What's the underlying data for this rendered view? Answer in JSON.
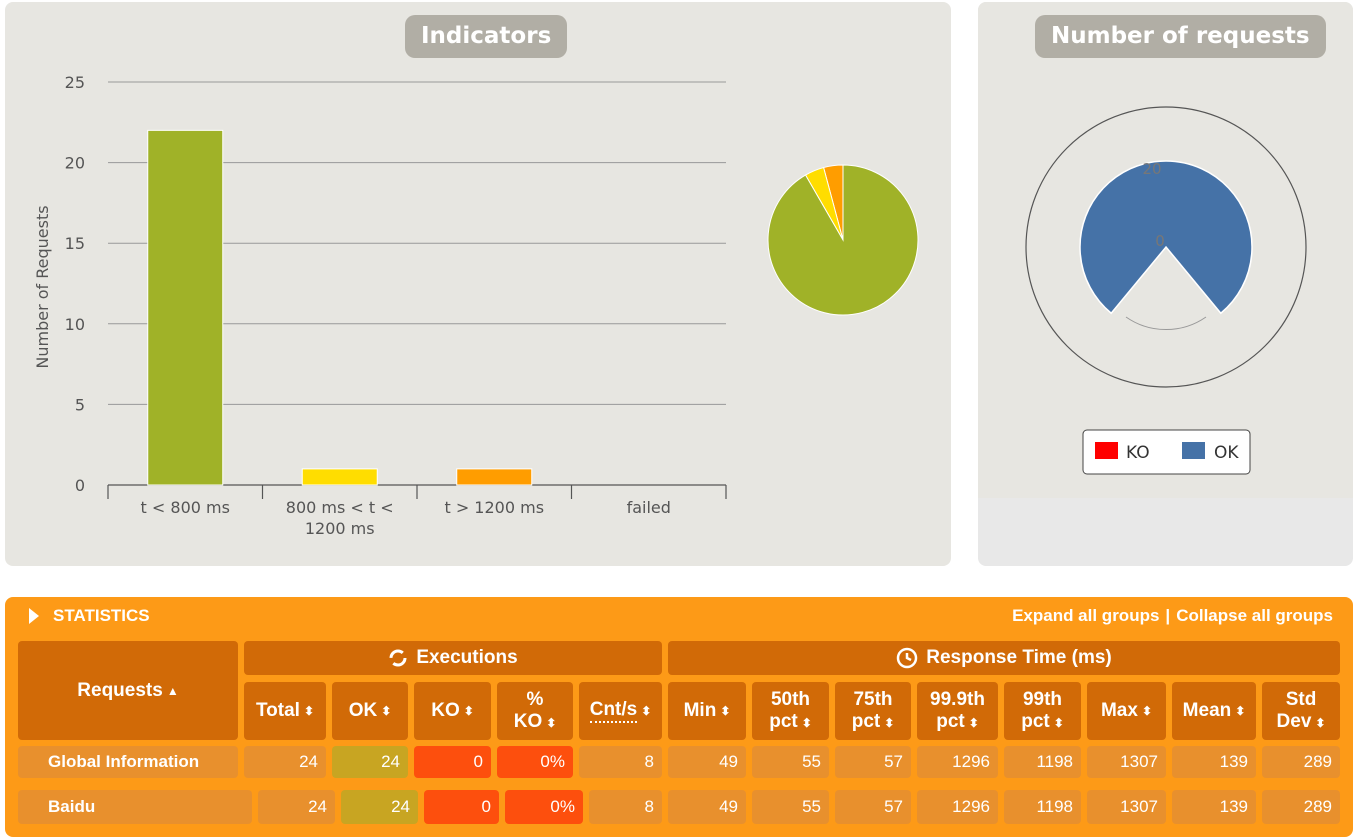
{
  "indicators": {
    "title": "Indicators",
    "chart_data": {
      "type": "bar",
      "ylabel": "Number of Requests",
      "ylim": [
        0,
        25
      ],
      "yticks": [
        "0",
        "5",
        "10",
        "15",
        "20",
        "25"
      ],
      "categories": [
        "t < 800 ms",
        "800 ms < t <",
        "t > 1200 ms",
        "failed"
      ],
      "category_second_line": [
        "",
        "1200 ms",
        "",
        ""
      ],
      "values": [
        22,
        1,
        1,
        0
      ],
      "colors": [
        "#a0b228",
        "#ffdd00",
        "#ff9d00",
        "#ff0000"
      ],
      "grid": true
    },
    "pie_data": {
      "type": "pie",
      "values": [
        22,
        1,
        1,
        0
      ],
      "colors": [
        "#a0b228",
        "#ffdd00",
        "#ff9d00",
        "#ff0000"
      ]
    }
  },
  "number_of_requests": {
    "title": "Number of requests",
    "chart_data": {
      "type": "pie",
      "series": [
        {
          "name": "KO",
          "value": 0,
          "color": "#ff0000"
        },
        {
          "name": "OK",
          "value": 24,
          "color": "#4572a7"
        }
      ],
      "radial_ticks": [
        "20",
        "0"
      ]
    },
    "legend": [
      {
        "label": "KO",
        "color": "#ff0000"
      },
      {
        "label": "OK",
        "color": "#4572a7"
      }
    ]
  },
  "statistics": {
    "title": "STATISTICS",
    "expand_label": "Expand all groups",
    "separator": "|",
    "collapse_label": "Collapse all groups",
    "requests_header": "Requests",
    "executions_header": "Executions",
    "response_time_header": "Response Time (ms)",
    "columns": {
      "total": "Total",
      "ok": "OK",
      "ko": "KO",
      "pct_ko_1": "%",
      "pct_ko_2": "KO",
      "cnt": "Cnt/s",
      "min": "Min",
      "p50_1": "50th",
      "p50_2": "pct",
      "p75_1": "75th",
      "p75_2": "pct",
      "p999_1": "99.9th",
      "p999_2": "pct",
      "p99_1": "99th",
      "p99_2": "pct",
      "max": "Max",
      "mean": "Mean",
      "std_1": "Std",
      "std_2": "Dev"
    },
    "rows": [
      {
        "name": "Global Information",
        "total": "24",
        "ok": "24",
        "ko": "0",
        "pct_ko": "0%",
        "cnt": "8",
        "min": "49",
        "p50": "55",
        "p75": "57",
        "p999": "1296",
        "p99": "1198",
        "max": "1307",
        "mean": "139",
        "std": "289"
      },
      {
        "name": "Baidu",
        "total": "24",
        "ok": "24",
        "ko": "0",
        "pct_ko": "0%",
        "cnt": "8",
        "min": "49",
        "p50": "55",
        "p75": "57",
        "p999": "1296",
        "p99": "1198",
        "max": "1307",
        "mean": "139",
        "std": "289"
      }
    ]
  }
}
